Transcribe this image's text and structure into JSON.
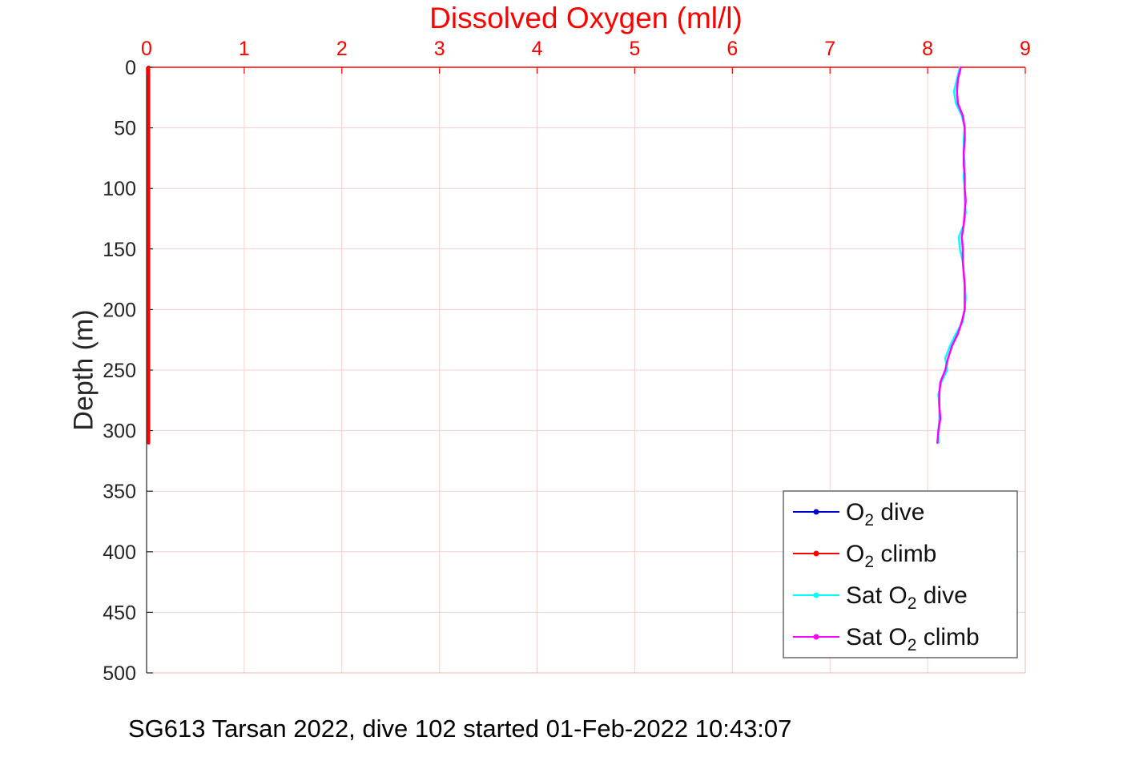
{
  "caption": "SG613 Tarsan 2022, dive 102 started 01-Feb-2022 10:43:07",
  "colors": {
    "title": "#ff0000",
    "grid": "#f6cfcf",
    "axis_box_light": "#f2b8b8",
    "x_axis": "#ff0000",
    "y_axis": "#262626",
    "legend_border": "#444444",
    "legend_text": "#111111"
  },
  "chart_data": {
    "type": "line",
    "title": "Dissolved Oxygen (ml/l)",
    "xlabel": "Dissolved Oxygen (ml/l)",
    "ylabel": "Depth (m)",
    "x_axis": {
      "position": "top",
      "min": 0,
      "max": 9,
      "ticks": [
        0,
        1,
        2,
        3,
        4,
        5,
        6,
        7,
        8,
        9
      ],
      "color": "#ff0000"
    },
    "y_axis": {
      "position": "left",
      "min": 0,
      "max": 500,
      "reversed": true,
      "ticks": [
        0,
        50,
        100,
        150,
        200,
        250,
        300,
        350,
        400,
        450,
        500
      ],
      "color": "#262626"
    },
    "grid": true,
    "legend_position": "bottom-right",
    "depth": [
      0,
      10,
      20,
      30,
      40,
      50,
      60,
      70,
      80,
      90,
      100,
      110,
      120,
      130,
      140,
      150,
      160,
      170,
      180,
      190,
      200,
      210,
      220,
      230,
      240,
      250,
      260,
      270,
      280,
      290,
      300,
      310
    ],
    "series": [
      {
        "id": "o2-dive",
        "name": "O2 dive",
        "label_pre": "O",
        "label_sub": "2",
        "label_post": " dive",
        "color": "#0000cc",
        "marker": "point",
        "line_width": 4,
        "values": [
          0.02,
          0.02,
          0.02,
          0.02,
          0.02,
          0.02,
          0.02,
          0.02,
          0.02,
          0.02,
          0.02,
          0.02,
          0.02,
          0.02,
          0.02,
          0.02,
          0.02,
          0.02,
          0.02,
          0.02,
          0.02,
          0.02,
          0.02,
          0.02,
          0.02,
          0.02,
          0.02,
          0.02,
          0.02,
          0.02,
          0.02,
          0.02
        ]
      },
      {
        "id": "o2-climb",
        "name": "O2 climb",
        "label_pre": "O",
        "label_sub": "2",
        "label_post": " climb",
        "color": "#ff0000",
        "marker": "point",
        "line_width": 4,
        "values": [
          0.02,
          0.02,
          0.02,
          0.02,
          0.02,
          0.02,
          0.02,
          0.02,
          0.02,
          0.02,
          0.02,
          0.02,
          0.02,
          0.02,
          0.02,
          0.02,
          0.02,
          0.02,
          0.02,
          0.02,
          0.02,
          0.02,
          0.02,
          0.02,
          0.02,
          0.02,
          0.02,
          0.02,
          0.02,
          0.02,
          0.02,
          0.02
        ]
      },
      {
        "id": "sat-o2-dive",
        "name": "Sat O2 dive",
        "label_pre": "Sat O",
        "label_sub": "2",
        "label_post": " dive",
        "color": "#00ffff",
        "marker": "point",
        "line_width": 2.5,
        "values": [
          8.33,
          8.3,
          8.27,
          8.29,
          8.35,
          8.38,
          8.37,
          8.37,
          8.38,
          8.37,
          8.38,
          8.38,
          8.39,
          8.37,
          8.32,
          8.33,
          8.36,
          8.37,
          8.38,
          8.39,
          8.38,
          8.36,
          8.29,
          8.23,
          8.18,
          8.2,
          8.14,
          8.11,
          8.12,
          8.12,
          8.11,
          8.11
        ]
      },
      {
        "id": "sat-o2-climb",
        "name": "Sat O2 climb",
        "label_pre": "Sat O",
        "label_sub": "2",
        "label_post": " climb",
        "color": "#ff00ff",
        "marker": "point",
        "line_width": 2.5,
        "values": [
          8.34,
          8.31,
          8.3,
          8.31,
          8.36,
          8.38,
          8.38,
          8.37,
          8.37,
          8.38,
          8.38,
          8.39,
          8.38,
          8.37,
          8.35,
          8.36,
          8.36,
          8.37,
          8.38,
          8.38,
          8.38,
          8.35,
          8.31,
          8.25,
          8.21,
          8.18,
          8.13,
          8.12,
          8.12,
          8.13,
          8.11,
          8.1
        ]
      }
    ]
  }
}
